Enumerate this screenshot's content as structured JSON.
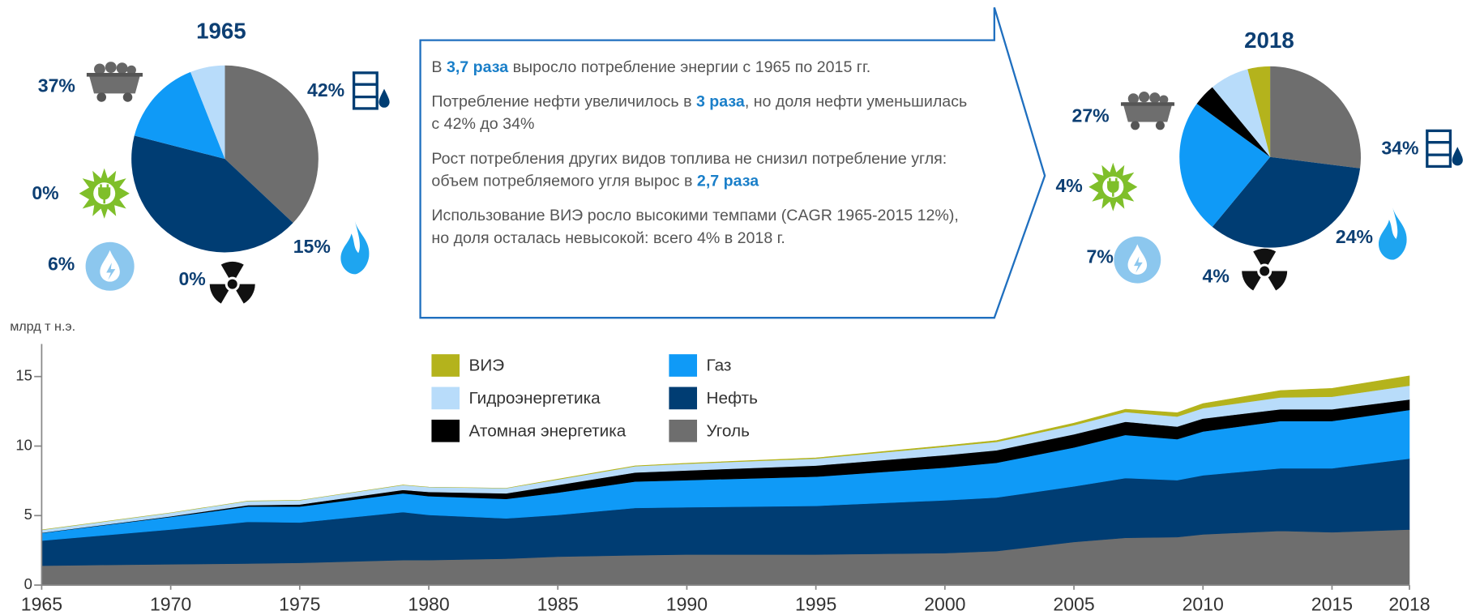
{
  "chart_data": [
    {
      "type": "pie",
      "title": "1965",
      "values": [
        37,
        42,
        15,
        0,
        6,
        0
      ],
      "value_labels": [
        "37%",
        "42%",
        "15%",
        "0%",
        "6%",
        "0%"
      ],
      "colors": [
        "#6e6e6e",
        "#003d73",
        "#0f9af7",
        "#000000",
        "#b8dcfa",
        "#b4b31c"
      ]
    },
    {
      "type": "pie",
      "title": "2018",
      "values": [
        27,
        34,
        24,
        4,
        7,
        4
      ],
      "value_labels": [
        "27%",
        "34%",
        "24%",
        "4%",
        "7%",
        "4%"
      ],
      "colors": [
        "#6e6e6e",
        "#003d73",
        "#0f9af7",
        "#000000",
        "#b8dcfa",
        "#b4b31c"
      ]
    },
    {
      "type": "area",
      "y_label": "млрд т н.э.",
      "x": [
        1965,
        1970,
        1973,
        1975,
        1979,
        1980,
        1983,
        1985,
        1988,
        1990,
        1995,
        2000,
        2002,
        2005,
        2007,
        2009,
        2010,
        2013,
        2015,
        2018
      ],
      "series": [
        {
          "name": "Уголь",
          "color": "#6e6e6e",
          "values": [
            1.4,
            1.5,
            1.55,
            1.6,
            1.8,
            1.8,
            1.9,
            2.05,
            2.15,
            2.2,
            2.2,
            2.3,
            2.45,
            3.1,
            3.4,
            3.45,
            3.65,
            3.9,
            3.8,
            4.0
          ]
        },
        {
          "name": "Нефть",
          "color": "#003d73",
          "values": [
            1.8,
            2.5,
            3.0,
            2.9,
            3.45,
            3.25,
            2.9,
            3.0,
            3.4,
            3.4,
            3.5,
            3.8,
            3.85,
            4.0,
            4.3,
            4.1,
            4.25,
            4.5,
            4.6,
            5.1
          ]
        },
        {
          "name": "Газ",
          "color": "#0f9af7",
          "values": [
            0.55,
            0.9,
            1.1,
            1.15,
            1.35,
            1.35,
            1.4,
            1.6,
            1.9,
            1.95,
            2.1,
            2.35,
            2.5,
            2.8,
            3.1,
            2.95,
            3.15,
            3.4,
            3.4,
            3.5
          ]
        },
        {
          "name": "Атомная энергетика",
          "color": "#000000",
          "values": [
            0.02,
            0.05,
            0.1,
            0.15,
            0.25,
            0.3,
            0.4,
            0.55,
            0.65,
            0.7,
            0.8,
            0.9,
            0.9,
            0.95,
            0.95,
            0.9,
            0.93,
            0.85,
            0.85,
            0.75
          ]
        },
        {
          "name": "Гидроэнергетика",
          "color": "#b8dcfa",
          "values": [
            0.2,
            0.25,
            0.3,
            0.3,
            0.35,
            0.35,
            0.37,
            0.4,
            0.45,
            0.48,
            0.5,
            0.6,
            0.6,
            0.65,
            0.7,
            0.72,
            0.75,
            0.85,
            0.9,
            1.0
          ]
        },
        {
          "name": "ВИЭ",
          "color": "#b4b31c",
          "values": [
            0,
            0,
            0,
            0,
            0,
            0,
            0,
            0.02,
            0.03,
            0.04,
            0.05,
            0.08,
            0.1,
            0.15,
            0.2,
            0.28,
            0.33,
            0.5,
            0.6,
            0.7
          ]
        }
      ],
      "xlim": [
        1965,
        2018
      ],
      "xticks": [
        1965,
        1970,
        1975,
        1980,
        1985,
        1990,
        1995,
        2000,
        2005,
        2010,
        2015,
        2018
      ],
      "ylim": [
        0,
        16
      ],
      "yticks": [
        0,
        5,
        10,
        15
      ]
    }
  ],
  "callout": {
    "paragraphs": [
      [
        {
          "text": "В "
        },
        {
          "text": "3,7 раза",
          "bold": true
        },
        {
          "text": " выросло потребление энергии с 1965 по 2015 гг."
        }
      ],
      [
        {
          "text": "Потребление нефти увеличилось в "
        },
        {
          "text": "3 раза",
          "bold": true
        },
        {
          "text": ", но доля нефти уменьшилась с 42% до 34%"
        }
      ],
      [
        {
          "text": "Рост потребления других видов топлива не снизил потребление угля: объем потребляемого угля вырос в "
        },
        {
          "text": "2,7 раза",
          "bold": true
        }
      ],
      [
        {
          "text": "Использование ВИЭ росло высокими темпами (CAGR 1965-2015 12%), но доля осталась невысокой: всего 4% в 2018 г."
        }
      ]
    ]
  }
}
